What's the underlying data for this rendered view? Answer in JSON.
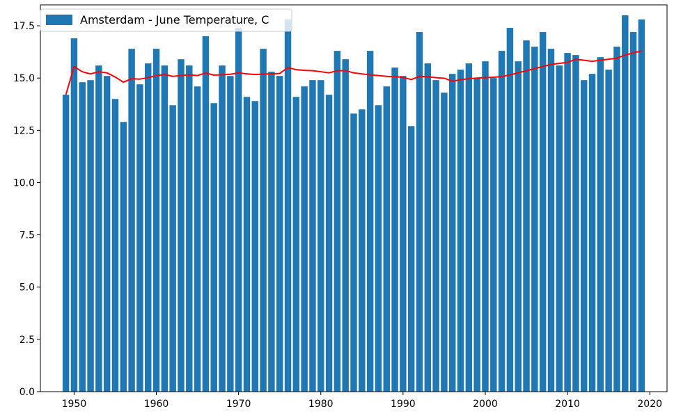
{
  "chart_data": {
    "type": "bar",
    "xlabel": "",
    "ylabel": "",
    "xlim": [
      1945.9,
      2022.1
    ],
    "ylim": [
      0,
      18.5
    ],
    "x_ticks": [
      1950,
      1960,
      1970,
      1980,
      1990,
      2000,
      2010,
      2020
    ],
    "y_ticks": [
      0.0,
      2.5,
      5.0,
      7.5,
      10.0,
      12.5,
      15.0,
      17.5
    ],
    "x_tick_labels": [
      "1950",
      "1960",
      "1970",
      "1980",
      "1990",
      "2000",
      "2010",
      "2020"
    ],
    "y_tick_labels": [
      "0.0",
      "2.5",
      "5.0",
      "7.5",
      "10.0",
      "12.5",
      "15.0",
      "17.5"
    ],
    "grid": false,
    "legend_position": "upper-left",
    "series": [
      {
        "name": "Amsterdam - June Temperature, C",
        "type": "bar",
        "color": "#1f77b4",
        "x": [
          1949,
          1950,
          1951,
          1952,
          1953,
          1954,
          1955,
          1956,
          1957,
          1958,
          1959,
          1960,
          1961,
          1962,
          1963,
          1964,
          1965,
          1966,
          1967,
          1968,
          1969,
          1970,
          1971,
          1972,
          1973,
          1974,
          1975,
          1976,
          1977,
          1978,
          1979,
          1980,
          1981,
          1982,
          1983,
          1984,
          1985,
          1986,
          1987,
          1988,
          1989,
          1990,
          1991,
          1992,
          1993,
          1994,
          1995,
          1996,
          1997,
          1998,
          1999,
          2000,
          2001,
          2002,
          2003,
          2004,
          2005,
          2006,
          2007,
          2008,
          2009,
          2010,
          2011,
          2012,
          2013,
          2014,
          2015,
          2016,
          2017,
          2018,
          2019
        ],
        "values": [
          14.2,
          16.9,
          14.8,
          14.9,
          15.6,
          15.1,
          14.0,
          12.9,
          16.4,
          14.7,
          15.7,
          16.4,
          15.6,
          13.7,
          15.9,
          15.6,
          14.6,
          17.0,
          13.8,
          15.6,
          15.1,
          17.4,
          14.1,
          13.9,
          16.4,
          15.3,
          15.1,
          17.8,
          14.1,
          14.6,
          14.9,
          14.9,
          14.2,
          16.3,
          15.9,
          13.3,
          13.5,
          16.3,
          13.7,
          14.6,
          15.5,
          15.1,
          12.7,
          17.2,
          15.7,
          14.9,
          14.3,
          15.2,
          15.4,
          15.7,
          15.0,
          15.8,
          15.0,
          16.3,
          17.4,
          15.8,
          16.8,
          16.5,
          17.2,
          16.4,
          15.6,
          16.2,
          16.1,
          14.9,
          15.2,
          16.0,
          15.4,
          16.5,
          18.0,
          17.2,
          17.8
        ]
      },
      {
        "type": "line",
        "color": "#ff0000",
        "x": [
          1949,
          1950,
          1951,
          1952,
          1953,
          1954,
          1955,
          1956,
          1957,
          1958,
          1959,
          1960,
          1961,
          1962,
          1963,
          1964,
          1965,
          1966,
          1967,
          1968,
          1969,
          1970,
          1971,
          1972,
          1973,
          1974,
          1975,
          1976,
          1977,
          1978,
          1979,
          1980,
          1981,
          1982,
          1983,
          1984,
          1985,
          1986,
          1987,
          1988,
          1989,
          1990,
          1991,
          1992,
          1993,
          1994,
          1995,
          1996,
          1997,
          1998,
          1999,
          2000,
          2001,
          2002,
          2003,
          2004,
          2005,
          2006,
          2007,
          2008,
          2009,
          2010,
          2011,
          2012,
          2013,
          2014,
          2015,
          2016,
          2017,
          2018,
          2019
        ],
        "values": [
          14.2,
          15.55,
          15.3,
          15.2,
          15.3,
          15.25,
          15.05,
          14.8,
          14.97,
          14.95,
          15.02,
          15.12,
          15.17,
          15.08,
          15.12,
          15.15,
          15.12,
          15.24,
          15.14,
          15.16,
          15.18,
          15.25,
          15.2,
          15.17,
          15.19,
          15.2,
          15.22,
          15.5,
          15.4,
          15.37,
          15.35,
          15.3,
          15.25,
          15.35,
          15.35,
          15.25,
          15.2,
          15.15,
          15.12,
          15.08,
          15.07,
          15.03,
          14.93,
          15.08,
          15.06,
          15.02,
          14.99,
          14.85,
          14.92,
          14.97,
          15.0,
          15.02,
          15.04,
          15.07,
          15.15,
          15.25,
          15.35,
          15.45,
          15.55,
          15.65,
          15.7,
          15.75,
          15.9,
          15.85,
          15.8,
          15.85,
          15.9,
          15.95,
          16.1,
          16.2,
          16.3
        ]
      }
    ]
  }
}
